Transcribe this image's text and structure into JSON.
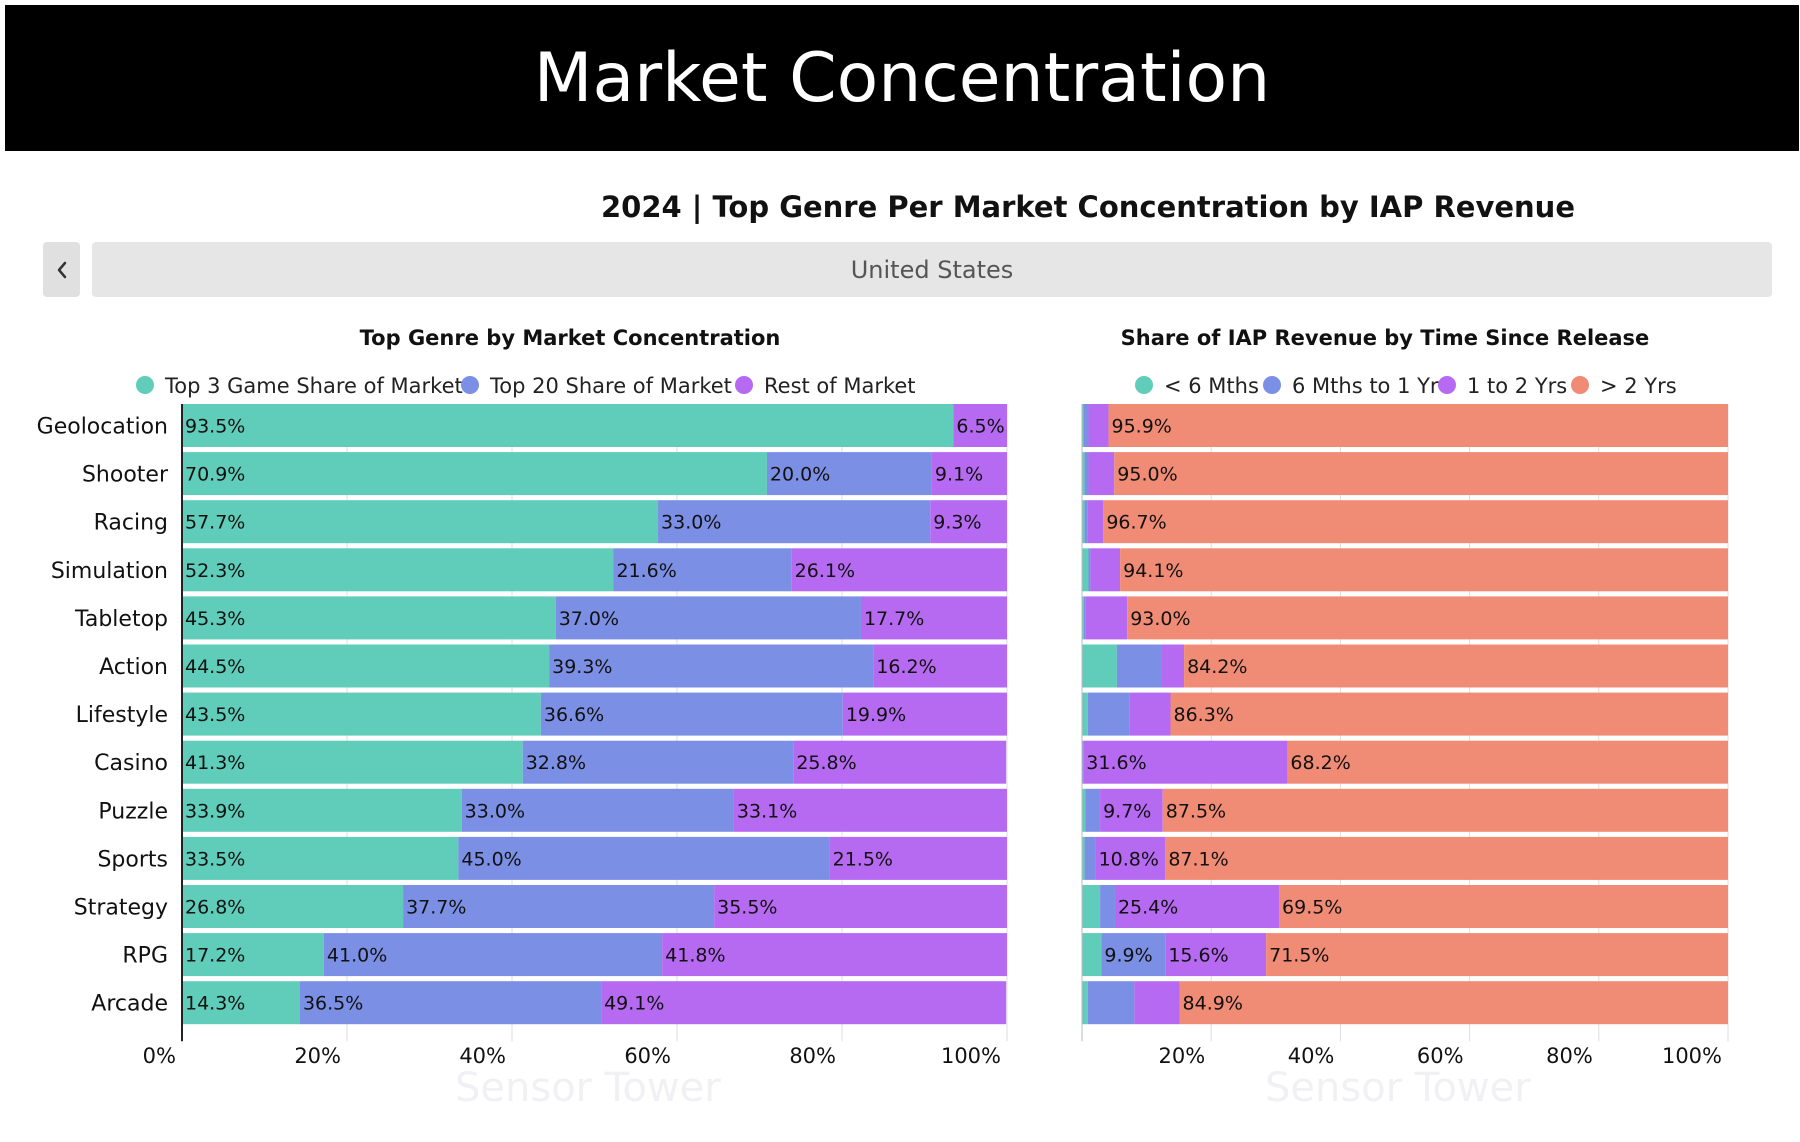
{
  "header": {
    "title": "Market Concentration"
  },
  "main_title": "2024 | Top Genre Per Market Concentration by IAP Revenue",
  "nav": {
    "tab_label": "United States"
  },
  "watermark": "Sensor Tower",
  "colors": {
    "teal": "#5fcdb9",
    "blue": "#7b8fe5",
    "purple": "#b56af1",
    "salmon": "#f08c75"
  },
  "chart_data": [
    {
      "type": "bar",
      "orientation": "horizontal",
      "stacked": true,
      "title": "Top Genre by Market Concentration",
      "categories": [
        "Geolocation",
        "Shooter",
        "Racing",
        "Simulation",
        "Tabletop",
        "Action",
        "Lifestyle",
        "Casino",
        "Puzzle",
        "Sports",
        "Strategy",
        "RPG",
        "Arcade"
      ],
      "series": [
        {
          "name": "Top 3 Game Share of Market",
          "color": "#5fcdb9",
          "values": [
            93.5,
            70.9,
            57.7,
            52.3,
            45.3,
            44.5,
            43.5,
            41.3,
            33.9,
            33.5,
            26.8,
            17.2,
            14.3
          ],
          "labels": [
            "93.5%",
            "70.9%",
            "57.7%",
            "52.3%",
            "45.3%",
            "44.5%",
            "43.5%",
            "41.3%",
            "33.9%",
            "33.5%",
            "26.8%",
            "17.2%",
            "14.3%"
          ]
        },
        {
          "name": "Top 20 Share of Market",
          "color": "#7b8fe5",
          "values": [
            0,
            20.0,
            33.0,
            21.6,
            37.0,
            39.3,
            36.6,
            32.8,
            33.0,
            45.0,
            37.7,
            41.0,
            36.5
          ],
          "labels": [
            "",
            "20.0%",
            "33.0%",
            "21.6%",
            "37.0%",
            "39.3%",
            "36.6%",
            "32.8%",
            "33.0%",
            "45.0%",
            "37.7%",
            "41.0%",
            "36.5%"
          ]
        },
        {
          "name": "Rest of Market",
          "color": "#b56af1",
          "values": [
            6.5,
            9.1,
            9.3,
            26.1,
            17.7,
            16.2,
            19.9,
            25.8,
            33.1,
            21.5,
            35.5,
            41.8,
            49.1
          ],
          "labels": [
            "6.5%",
            "9.1%",
            "9.3%",
            "26.1%",
            "17.7%",
            "16.2%",
            "19.9%",
            "25.8%",
            "33.1%",
            "21.5%",
            "35.5%",
            "41.8%",
            "49.1%"
          ]
        }
      ],
      "xticks": [
        "0%",
        "20%",
        "40%",
        "60%",
        "80%",
        "100%"
      ],
      "xlim": [
        0,
        100
      ],
      "grid": true,
      "legend_position": "top"
    },
    {
      "type": "bar",
      "orientation": "horizontal",
      "stacked": true,
      "title": "Share of IAP Revenue by Time Since Release",
      "categories": [
        "Geolocation",
        "Shooter",
        "Racing",
        "Simulation",
        "Tabletop",
        "Action",
        "Lifestyle",
        "Casino",
        "Puzzle",
        "Sports",
        "Strategy",
        "RPG",
        "Arcade"
      ],
      "series": [
        {
          "name": "< 6 Mths",
          "color": "#5fcdb9",
          "values": [
            0.2,
            0.4,
            0.4,
            1.0,
            0.3,
            5.4,
            0.9,
            0.0,
            0.5,
            0.4,
            2.8,
            3.0,
            0.9
          ],
          "labels": [
            "",
            "",
            "",
            "",
            "",
            "",
            "",
            "",
            "",
            "",
            "",
            "",
            ""
          ]
        },
        {
          "name": "6 Mths to 1 Yr",
          "color": "#7b8fe5",
          "values": [
            0.8,
            0.6,
            0.5,
            0.3,
            0.2,
            6.9,
            6.4,
            0.2,
            2.3,
            1.7,
            2.3,
            9.9,
            7.2
          ],
          "labels": [
            "",
            "",
            "",
            "",
            "",
            "",
            "",
            "",
            "",
            "",
            "",
            "9.9%",
            ""
          ]
        },
        {
          "name": "1 to 2 Yrs",
          "color": "#b56af1",
          "values": [
            3.1,
            4.0,
            2.4,
            4.6,
            6.5,
            3.5,
            6.4,
            31.6,
            9.7,
            10.8,
            25.4,
            15.6,
            7.0
          ],
          "labels": [
            "",
            "",
            "",
            "",
            "",
            "",
            "",
            "31.6%",
            "9.7%",
            "10.8%",
            "25.4%",
            "15.6%",
            ""
          ]
        },
        {
          "name": "> 2 Yrs",
          "color": "#f08c75",
          "values": [
            95.9,
            95.0,
            96.7,
            94.1,
            93.0,
            84.2,
            86.3,
            68.2,
            87.5,
            87.1,
            69.5,
            71.5,
            84.9
          ],
          "labels": [
            "95.9%",
            "95.0%",
            "96.7%",
            "94.1%",
            "93.0%",
            "84.2%",
            "86.3%",
            "68.2%",
            "87.5%",
            "87.1%",
            "69.5%",
            "71.5%",
            "84.9%"
          ]
        }
      ],
      "xticks": [
        "20%",
        "40%",
        "60%",
        "80%",
        "100%"
      ],
      "xlim": [
        0,
        100
      ],
      "grid": true,
      "legend_position": "top"
    }
  ]
}
